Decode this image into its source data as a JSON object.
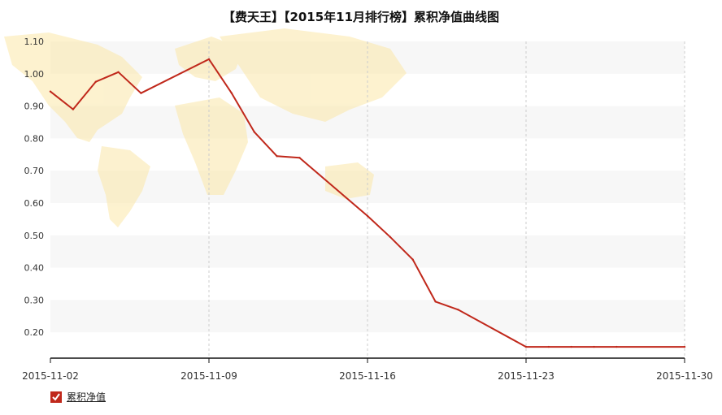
{
  "chart_data": {
    "type": "line",
    "title": "【费天王】【2015年11月排行榜】累积净值曲线图",
    "xlabel": "",
    "ylabel": "",
    "x_tick_labels": [
      "2015-11-02",
      "2015-11-09",
      "2015-11-16",
      "2015-11-23",
      "2015-11-30"
    ],
    "y_tick_labels": [
      "0.20",
      "0.30",
      "0.40",
      "0.50",
      "0.60",
      "0.70",
      "0.80",
      "0.90",
      "1.00",
      "1.10"
    ],
    "xlim_days": [
      0,
      28
    ],
    "ylim": [
      0.12,
      1.1
    ],
    "grid": true,
    "legend_position": "bottom-left",
    "series": [
      {
        "name": "累积净值",
        "color": "#c0281b",
        "points": [
          {
            "x": "2015-11-02",
            "y": 0.945
          },
          {
            "x": "2015-11-03",
            "y": 0.89
          },
          {
            "x": "2015-11-04",
            "y": 0.975
          },
          {
            "x": "2015-11-05",
            "y": 1.005
          },
          {
            "x": "2015-11-06",
            "y": 0.94
          },
          {
            "x": "2015-11-09",
            "y": 1.045
          },
          {
            "x": "2015-11-10",
            "y": 0.94
          },
          {
            "x": "2015-11-11",
            "y": 0.82
          },
          {
            "x": "2015-11-12",
            "y": 0.745
          },
          {
            "x": "2015-11-13",
            "y": 0.74
          },
          {
            "x": "2015-11-16",
            "y": 0.56
          },
          {
            "x": "2015-11-17",
            "y": 0.495
          },
          {
            "x": "2015-11-18",
            "y": 0.425
          },
          {
            "x": "2015-11-19",
            "y": 0.295
          },
          {
            "x": "2015-11-20",
            "y": 0.27
          },
          {
            "x": "2015-11-23",
            "y": 0.155
          },
          {
            "x": "2015-11-24",
            "y": 0.155
          },
          {
            "x": "2015-11-25",
            "y": 0.155
          },
          {
            "x": "2015-11-26",
            "y": 0.155
          },
          {
            "x": "2015-11-27",
            "y": 0.155
          },
          {
            "x": "2015-11-30",
            "y": 0.155
          }
        ]
      }
    ]
  }
}
